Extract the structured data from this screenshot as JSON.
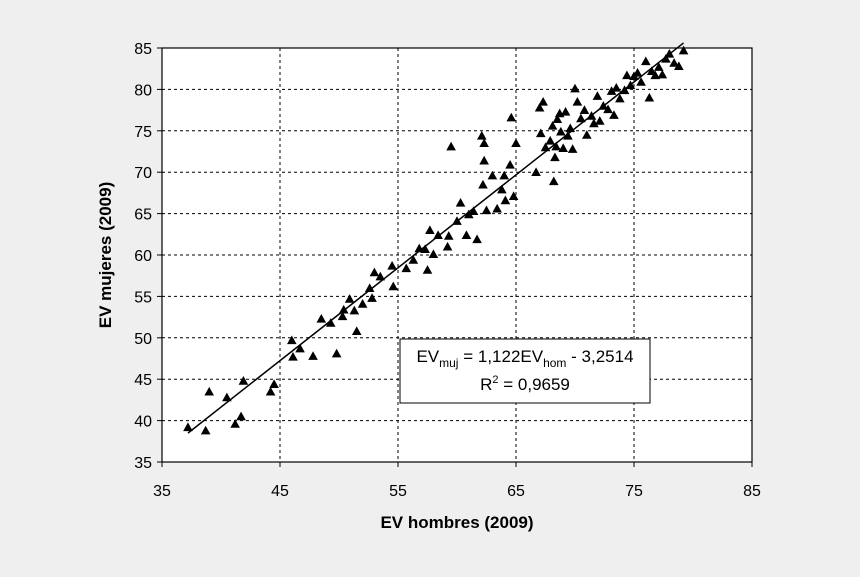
{
  "colors": {
    "background": "#efefef",
    "plot_area": "#ffffff",
    "marker": "#000000",
    "gridline": "#000000"
  },
  "chart_data": {
    "type": "scatter",
    "title": "",
    "xlabel": "EV hombres (2009)",
    "ylabel": "EV mujeres (2009)",
    "xlim": [
      35,
      85
    ],
    "ylim": [
      35,
      85
    ],
    "xticks": [
      35,
      45,
      55,
      65,
      75,
      85
    ],
    "yticks": [
      35,
      40,
      45,
      50,
      55,
      60,
      65,
      70,
      75,
      80,
      85
    ],
    "grid": true,
    "grid_style": "dashed",
    "marker": "triangle",
    "legend": "none",
    "trendline": {
      "type": "linear",
      "slope": 1.122,
      "intercept": -3.2514,
      "x_range": [
        37.2,
        79.2
      ],
      "equation_label": {
        "lhs_main": "EV",
        "lhs_sub": "muj",
        "rhs_prefix": " = 1,122EV",
        "rhs_sub": "hom",
        "rhs_suffix": " - 3,2514",
        "r2_main": "R",
        "r2_sup": "2",
        "r2_rest": " = 0,9659"
      }
    },
    "points": [
      [
        37.2,
        39.2
      ],
      [
        38.7,
        38.8
      ],
      [
        39.0,
        43.5
      ],
      [
        40.5,
        42.8
      ],
      [
        41.2,
        39.6
      ],
      [
        41.7,
        40.5
      ],
      [
        41.9,
        44.8
      ],
      [
        44.2,
        43.5
      ],
      [
        44.5,
        44.4
      ],
      [
        46.0,
        49.7
      ],
      [
        46.1,
        47.7
      ],
      [
        46.7,
        48.7
      ],
      [
        47.8,
        47.8
      ],
      [
        48.5,
        52.3
      ],
      [
        49.3,
        51.8
      ],
      [
        49.8,
        48.1
      ],
      [
        50.3,
        52.6
      ],
      [
        50.4,
        53.4
      ],
      [
        50.9,
        54.7
      ],
      [
        51.3,
        53.3
      ],
      [
        51.5,
        50.8
      ],
      [
        52.0,
        54.1
      ],
      [
        52.6,
        56.0
      ],
      [
        52.8,
        54.8
      ],
      [
        53.0,
        57.9
      ],
      [
        53.5,
        57.4
      ],
      [
        54.5,
        58.7
      ],
      [
        54.6,
        56.2
      ],
      [
        55.7,
        58.4
      ],
      [
        56.3,
        59.4
      ],
      [
        56.8,
        60.8
      ],
      [
        57.3,
        60.7
      ],
      [
        57.5,
        58.2
      ],
      [
        57.7,
        63.0
      ],
      [
        58.0,
        60.1
      ],
      [
        58.4,
        62.4
      ],
      [
        59.2,
        61.0
      ],
      [
        59.3,
        62.3
      ],
      [
        59.5,
        73.1
      ],
      [
        60.0,
        64.1
      ],
      [
        60.3,
        66.3
      ],
      [
        60.8,
        62.4
      ],
      [
        61.0,
        64.9
      ],
      [
        61.4,
        65.3
      ],
      [
        61.7,
        61.9
      ],
      [
        62.1,
        74.4
      ],
      [
        62.2,
        68.5
      ],
      [
        62.3,
        73.5
      ],
      [
        62.3,
        71.4
      ],
      [
        62.5,
        65.4
      ],
      [
        63.0,
        69.6
      ],
      [
        63.4,
        65.6
      ],
      [
        63.8,
        67.9
      ],
      [
        64.0,
        69.6
      ],
      [
        64.1,
        66.6
      ],
      [
        64.5,
        70.9
      ],
      [
        64.6,
        76.6
      ],
      [
        64.8,
        67.1
      ],
      [
        65.0,
        73.5
      ],
      [
        66.7,
        70.0
      ],
      [
        67.0,
        77.8
      ],
      [
        67.1,
        74.7
      ],
      [
        67.3,
        78.5
      ],
      [
        67.5,
        73.0
      ],
      [
        67.9,
        73.8
      ],
      [
        68.1,
        75.6
      ],
      [
        68.2,
        68.9
      ],
      [
        68.3,
        71.8
      ],
      [
        68.4,
        73.1
      ],
      [
        68.5,
        76.4
      ],
      [
        68.7,
        77.1
      ],
      [
        68.8,
        74.9
      ],
      [
        69.0,
        72.9
      ],
      [
        69.2,
        77.3
      ],
      [
        69.4,
        74.4
      ],
      [
        69.6,
        75.3
      ],
      [
        69.8,
        72.8
      ],
      [
        70.0,
        80.1
      ],
      [
        70.2,
        78.5
      ],
      [
        70.5,
        76.5
      ],
      [
        70.8,
        77.5
      ],
      [
        71.0,
        74.5
      ],
      [
        71.4,
        76.8
      ],
      [
        71.6,
        75.9
      ],
      [
        71.9,
        79.2
      ],
      [
        72.1,
        76.2
      ],
      [
        72.4,
        78.0
      ],
      [
        72.8,
        77.6
      ],
      [
        73.1,
        79.8
      ],
      [
        73.3,
        76.9
      ],
      [
        73.5,
        80.2
      ],
      [
        73.8,
        78.9
      ],
      [
        74.2,
        79.9
      ],
      [
        74.4,
        81.7
      ],
      [
        74.7,
        80.5
      ],
      [
        75.0,
        81.6
      ],
      [
        75.3,
        82.0
      ],
      [
        75.6,
        80.9
      ],
      [
        76.0,
        83.4
      ],
      [
        76.3,
        79.0
      ],
      [
        76.5,
        82.2
      ],
      [
        76.8,
        81.7
      ],
      [
        77.1,
        82.7
      ],
      [
        77.4,
        81.8
      ],
      [
        77.7,
        83.7
      ],
      [
        78.0,
        84.3
      ],
      [
        78.4,
        83.2
      ],
      [
        78.8,
        82.8
      ],
      [
        79.2,
        84.7
      ]
    ]
  }
}
